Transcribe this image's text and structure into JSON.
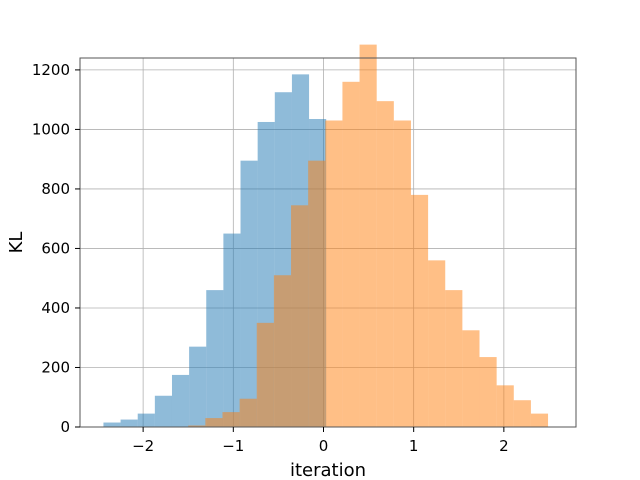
{
  "chart_data": {
    "type": "histogram",
    "xlabel": "iteration",
    "ylabel": "KL",
    "title": "",
    "xlim": [
      -2.7,
      2.8
    ],
    "ylim": [
      0,
      1240
    ],
    "xticks": [
      -2,
      -1,
      0,
      1,
      2
    ],
    "xtick_labels": [
      "−2",
      "−1",
      "0",
      "1",
      "2"
    ],
    "yticks": [
      0,
      200,
      400,
      600,
      800,
      1000,
      1200
    ],
    "ytick_labels": [
      "0",
      "200",
      "400",
      "600",
      "800",
      "1000",
      "1200"
    ],
    "grid": true,
    "legend": false,
    "series": [
      {
        "color": "#1f77b4",
        "opacity": 0.5,
        "bin_edges": [
          -2.44,
          -2.25,
          -2.06,
          -1.87,
          -1.68,
          -1.49,
          -1.3,
          -1.11,
          -0.92,
          -0.73,
          -0.54,
          -0.35,
          -0.16,
          0.03
        ],
        "counts": [
          15,
          25,
          45,
          105,
          175,
          270,
          460,
          650,
          895,
          1025,
          1125,
          1185,
          1035
        ]
      },
      {
        "color": "#ff7f0e",
        "opacity": 0.5,
        "bin_edges": [
          -1.5,
          -1.31,
          -1.12,
          -0.93,
          -0.74,
          -0.55,
          -0.36,
          -0.17,
          0.02,
          0.21,
          0.4,
          0.59,
          0.78,
          0.97,
          1.16,
          1.35,
          1.54,
          1.73,
          1.92,
          2.11,
          2.3,
          2.49
        ],
        "counts": [
          5,
          30,
          50,
          95,
          350,
          510,
          745,
          895,
          1030,
          1160,
          1285,
          1095,
          1030,
          780,
          560,
          460,
          325,
          235,
          140,
          90,
          45
        ]
      }
    ]
  }
}
